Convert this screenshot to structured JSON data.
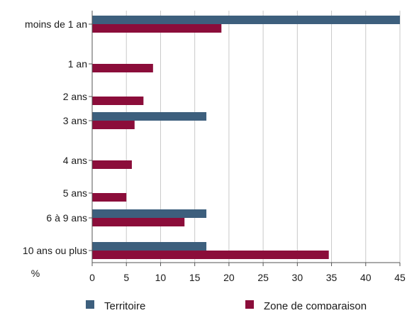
{
  "chart_data": {
    "type": "bar",
    "orientation": "horizontal",
    "categories": [
      "moins de 1 an",
      "1 an",
      "2 ans",
      "3 ans",
      "4 ans",
      "5 ans",
      "6 à 9 ans",
      "10 ans ou plus"
    ],
    "series": [
      {
        "name": "Territoire",
        "color": "#3d5f7d",
        "values": [
          45.0,
          0,
          0,
          16.7,
          0,
          0,
          16.7,
          16.7
        ]
      },
      {
        "name": "Zone de comparaison",
        "color": "#8b0d3a",
        "values": [
          18.9,
          8.9,
          7.5,
          6.2,
          5.8,
          5.0,
          13.5,
          34.6
        ]
      }
    ],
    "xlabel": "%",
    "xlim": [
      0,
      45
    ],
    "xticks": [
      0,
      5,
      10,
      15,
      20,
      25,
      30,
      35,
      40,
      45
    ],
    "grid": "vertical",
    "legend_position": "bottom"
  }
}
